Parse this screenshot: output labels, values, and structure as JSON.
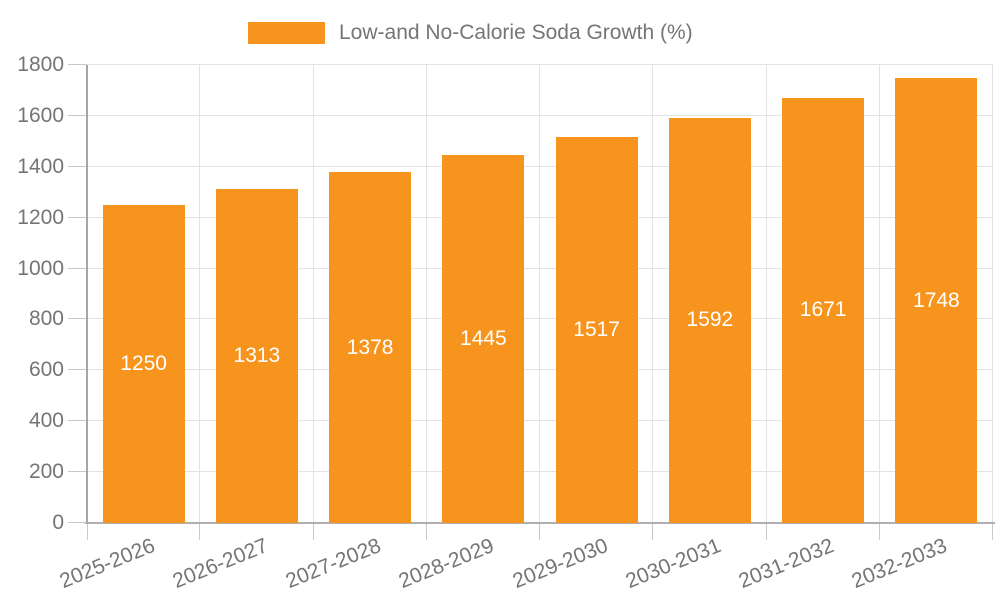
{
  "legend": {
    "position": "top"
  },
  "colors": {
    "bar": "#f7941e",
    "axis_text": "#757575",
    "grid": "#e3e3e3",
    "axis_line_y": "#a6a6a6",
    "axis_line_x": "#b0b0b0",
    "tick": "#c8c8c8",
    "value_label": "#ffffff",
    "background": "#ffffff"
  },
  "chart_data": {
    "type": "bar",
    "series_name": "Low-and No-Calorie Soda Growth (%)",
    "title": "Low-and No-Calorie Soda Growth (%)",
    "categories": [
      "2025-2026",
      "2026-2027",
      "2027-2028",
      "2028-2029",
      "2029-2030",
      "2030-2031",
      "2031-2032",
      "2032-2033"
    ],
    "values": [
      1250,
      1313,
      1378,
      1445,
      1517,
      1592,
      1671,
      1748
    ],
    "xlabel": "",
    "ylabel": "",
    "ylim": [
      0,
      1800
    ],
    "ytick_interval": 200,
    "grid": true,
    "legend_position": "top",
    "value_label_position": "inside-center",
    "x_tick_rotation_deg": -22
  }
}
